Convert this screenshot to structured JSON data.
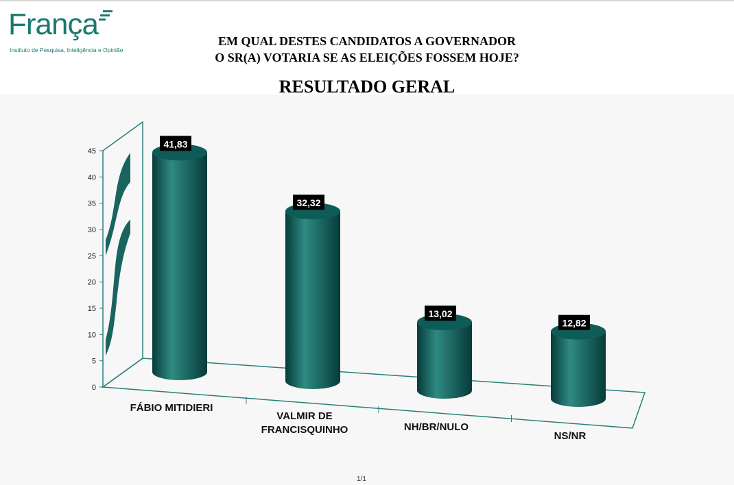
{
  "logo": {
    "name": "França",
    "tagline": "Instituto de Pesquisa, Inteligência e Opinião"
  },
  "question": {
    "line1": "EM QUAL DESTES CANDIDATOS A GOVERNADOR",
    "line2": "O SR(A) VOTARIA SE AS ELEIÇÕES FOSSEM HOJE?"
  },
  "subtitle": "RESULTADO GERAL",
  "footer_mark": "1/1",
  "colors": {
    "bar": "#0e5c57",
    "bar_dark": "#063b38",
    "bar_light": "#2f8a83",
    "axis": "#2a7f78",
    "label_bg": "#000000",
    "label_text": "#ffffff",
    "logo": "#1b7a6f"
  },
  "chart_data": {
    "type": "bar",
    "style": "3d-cylinder",
    "categories": [
      "FÁBIO MITIDIERI",
      "VALMIR DE FRANCISQUINHO",
      "NH/BR/NULO",
      "NS/NR"
    ],
    "category_lines": [
      [
        "FÁBIO MITIDIERI"
      ],
      [
        "VALMIR DE",
        "FRANCISQUINHO"
      ],
      [
        "NH/BR/NULO"
      ],
      [
        "NS/NR"
      ]
    ],
    "values": [
      41.83,
      32.32,
      13.02,
      12.82
    ],
    "value_labels": [
      "41,83",
      "32,32",
      "13,02",
      "12,82"
    ],
    "ylim": [
      0,
      45
    ],
    "yticks": [
      0,
      5,
      10,
      15,
      20,
      25,
      30,
      35,
      40,
      45
    ],
    "title": "",
    "xlabel": "",
    "ylabel": "",
    "grid": false,
    "legend": "none"
  }
}
